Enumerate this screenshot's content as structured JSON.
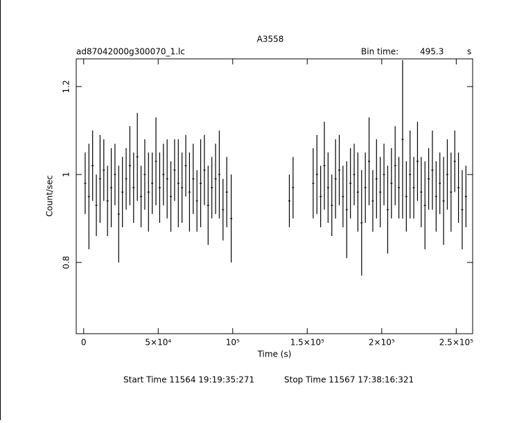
{
  "chart_data": {
    "type": "errorbar",
    "title": "A3558",
    "subtitle": "ad87042000g300070_1.lc",
    "bin_label": "Bin time:",
    "bin_value": "495.3",
    "bin_unit": "s",
    "x_label": "Time (s)",
    "y_label": "Count/sec",
    "start_time": "Start Time 11564  19:19:35:271",
    "stop_time": "Stop Time 11567  17:38:16:321",
    "color": "#000000",
    "xlim": [
      -5000,
      261000
    ],
    "ylim": [
      0.638,
      1.263
    ],
    "xticks": [
      0,
      {
        "value": 50000,
        "label": "5×10⁴"
      },
      {
        "value": 100000,
        "label": "10⁵"
      },
      {
        "value": 150000,
        "label": "1.5×10⁵"
      },
      {
        "value": 200000,
        "label": "2×10⁵"
      },
      {
        "value": 250000,
        "label": "2.5×10⁵"
      }
    ],
    "yticks": [
      0.8,
      1,
      1.2
    ],
    "x": [
      1000,
      3500,
      6000,
      8500,
      11000,
      13500,
      16000,
      18500,
      21000,
      23500,
      26000,
      28500,
      31000,
      33500,
      36000,
      38500,
      41000,
      43500,
      46000,
      48500,
      51000,
      53500,
      56000,
      58500,
      61000,
      63500,
      66000,
      68500,
      71000,
      73500,
      76000,
      78500,
      81000,
      83500,
      86000,
      88500,
      91000,
      93500,
      96000,
      99000,
      138000,
      140500,
      154000,
      156500,
      159000,
      161500,
      164000,
      166500,
      169000,
      171500,
      174000,
      176500,
      179000,
      181500,
      184000,
      186500,
      189000,
      191500,
      194000,
      196500,
      199000,
      201500,
      204000,
      206500,
      209000,
      211500,
      214000,
      216500,
      219000,
      221500,
      224000,
      226500,
      229000,
      231500,
      234000,
      236500,
      239000,
      241500,
      244000,
      246500,
      249000,
      251500,
      254000,
      256500
    ],
    "values": [
      0.98,
      0.95,
      1.02,
      0.93,
      0.99,
      1.01,
      0.94,
      0.97,
      1.0,
      0.91,
      0.96,
      0.99,
      1.02,
      0.97,
      1.04,
      0.95,
      1.0,
      0.96,
      0.98,
      1.03,
      0.97,
      1.0,
      0.99,
      0.95,
      1.01,
      0.98,
      0.97,
      1.02,
      0.96,
      0.99,
      0.94,
      0.98,
      1.01,
      0.93,
      0.97,
      0.99,
      1.0,
      0.92,
      0.96,
      0.9,
      0.94,
      0.97,
      0.98,
      1.0,
      0.95,
      1.02,
      0.97,
      0.93,
      0.99,
      1.01,
      0.95,
      0.92,
      0.98,
      1.0,
      0.96,
      0.89,
      0.97,
      1.03,
      0.94,
      0.99,
      0.96,
      1.0,
      0.92,
      0.98,
      1.02,
      0.97,
      1.08,
      0.95,
      1.0,
      0.97,
      1.03,
      0.96,
      0.93,
      0.99,
      1.01,
      0.95,
      0.98,
      0.94,
      1.0,
      0.96,
      1.03,
      0.97,
      0.92,
      0.95
    ],
    "errors": [
      0.07,
      0.12,
      0.08,
      0.07,
      0.1,
      0.07,
      0.08,
      0.09,
      0.07,
      0.11,
      0.08,
      0.07,
      0.09,
      0.08,
      0.1,
      0.07,
      0.08,
      0.09,
      0.07,
      0.1,
      0.08,
      0.07,
      0.09,
      0.08,
      0.07,
      0.1,
      0.08,
      0.07,
      0.09,
      0.08,
      0.07,
      0.1,
      0.08,
      0.09,
      0.07,
      0.08,
      0.1,
      0.07,
      0.08,
      0.1,
      0.06,
      0.07,
      0.08,
      0.09,
      0.07,
      0.1,
      0.08,
      0.07,
      0.09,
      0.08,
      0.07,
      0.11,
      0.08,
      0.07,
      0.09,
      0.12,
      0.08,
      0.1,
      0.07,
      0.09,
      0.08,
      0.07,
      0.1,
      0.08,
      0.09,
      0.07,
      0.18,
      0.08,
      0.1,
      0.07,
      0.09,
      0.08,
      0.1,
      0.07,
      0.09,
      0.08,
      0.07,
      0.1,
      0.08,
      0.09,
      0.07,
      0.08,
      0.09,
      0.07
    ]
  }
}
